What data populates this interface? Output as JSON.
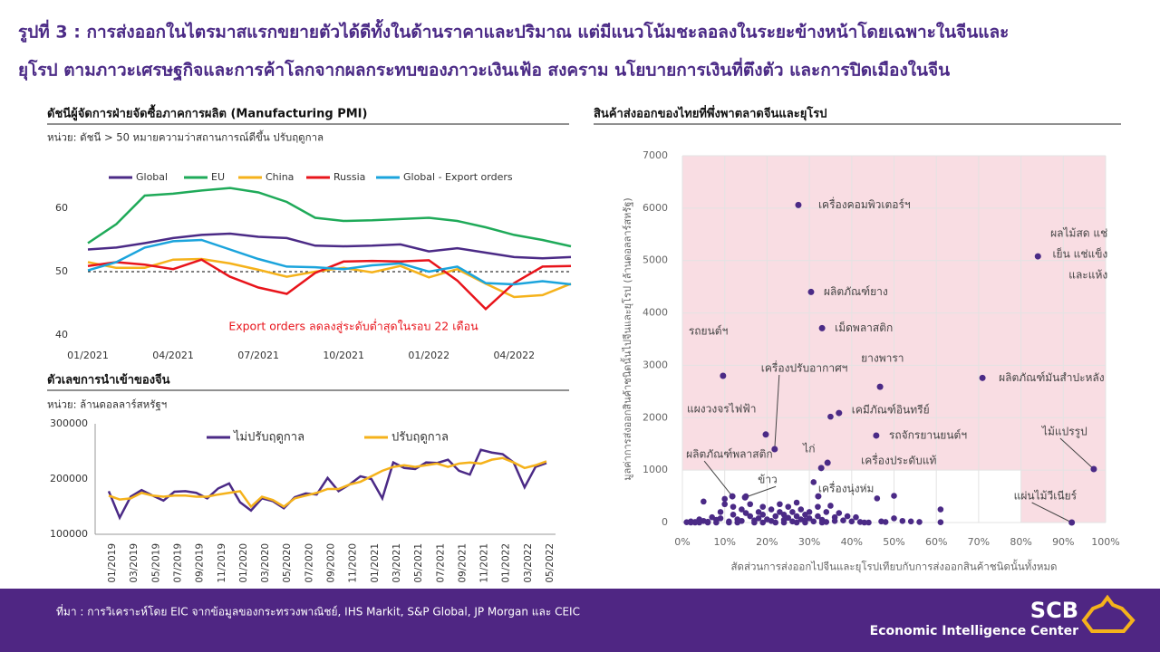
{
  "title": [
    "รูปที่ 3 : การส่งออกในไตรมาสแรกขยายตัวได้ดีทั้งในด้านราคาและปริมาณ แต่มีแนวโน้มชะลอลงในระยะข้างหน้าโดยเฉพาะในจีนและ",
    "ยุโรป ตามภาวะเศรษฐกิจและการค้าโลกจากผลกระทบของภาวะเงินเฟ้อ สงคราม นโยบายการเงินที่ตึงตัว และการปิดเมืองในจีน"
  ],
  "footer": {
    "source": "ที่มา : การวิเคราะห์โดย EIC จากข้อมูลของกระทรวงพาณิชย์, IHS Markit, S&P Global, JP Morgan และ CEIC",
    "logo": "SCB",
    "center": "Economic Intelligence Center"
  },
  "chart_data": [
    {
      "type": "line",
      "title": "ดัชนีผู้จัดการฝ่ายจัดซื้อภาคการผลิต (Manufacturing PMI)",
      "subtitle": "หน่วย: ดัชนี > 50 หมายความว่าสถานการณ์ดีขึ้น ปรับฤดูกาล",
      "categories": [
        "01/2021",
        null,
        null,
        "04/2021",
        null,
        null,
        "07/2021",
        null,
        null,
        "10/2021",
        null,
        null,
        "01/2022",
        null,
        null,
        "04/2022",
        null,
        null
      ],
      "series": [
        {
          "name": "Global",
          "color": "#4b2a86",
          "values": [
            53.5,
            53.8,
            54.5,
            55.3,
            55.8,
            56,
            55.5,
            55.3,
            54.1,
            54,
            54.1,
            54.3,
            53.2,
            53.7,
            53,
            52.3,
            52.1,
            52.3
          ]
        },
        {
          "name": "EU",
          "color": "#1faa59",
          "values": [
            54.5,
            57.5,
            62,
            62.3,
            62.8,
            63.2,
            62.5,
            61,
            58.5,
            58,
            58.1,
            58.3,
            58.5,
            58,
            57,
            55.8,
            55,
            54
          ]
        },
        {
          "name": "China",
          "color": "#f5b21b",
          "values": [
            51.5,
            50.6,
            50.6,
            51.9,
            52,
            51.3,
            50.3,
            49.2,
            50,
            50.6,
            49.9,
            50.9,
            49.1,
            50.4,
            48.1,
            46,
            46.3,
            48.1
          ]
        },
        {
          "name": "Russia",
          "color": "#e8141b",
          "values": [
            50.9,
            51.5,
            51.1,
            50.4,
            51.9,
            49.2,
            47.5,
            46.5,
            49.8,
            51.6,
            51.7,
            51.6,
            51.8,
            48.6,
            44.1,
            48.2,
            50.8,
            50.9
          ]
        },
        {
          "name": "Global - Export orders",
          "color": "#1ba4dc",
          "values": [
            50.2,
            51.5,
            53.8,
            54.8,
            55,
            53.5,
            52,
            50.8,
            50.7,
            50.4,
            51,
            51.3,
            50,
            50.8,
            48.2,
            48,
            48.5,
            48
          ]
        }
      ],
      "ylim": [
        40,
        65
      ],
      "yticks": [
        40,
        50,
        60
      ],
      "reference_line": 50,
      "annotation": "Export orders ลดลงสู่ระดับต่ำสุดในรอบ 22 เดือน",
      "annotation_color": "#e8141b",
      "legend": "top"
    },
    {
      "type": "line",
      "title": "ตัวเลขการนำเข้าของจีน",
      "subtitle": "หน่วย: ล้านดอลลาร์สหรัฐฯ",
      "categories": [
        "01/2019",
        null,
        "03/2019",
        null,
        "05/2019",
        null,
        "07/2019",
        null,
        "09/2019",
        null,
        "11/2019",
        null,
        "01/2020",
        null,
        "03/2020",
        null,
        "05/2020",
        null,
        "07/2020",
        null,
        "09/2020",
        null,
        "11/2020",
        null,
        "01/2021",
        null,
        "03/2021",
        null,
        "05/2021",
        null,
        "07/2021",
        null,
        "09/2021",
        null,
        "11/2021",
        null,
        "01/2022",
        null,
        "03/2022",
        null,
        "05/2022"
      ],
      "series": [
        {
          "name": "ไม่ปรับฤดูกาล",
          "color": "#4b2a86",
          "values": [
            178000,
            130000,
            168000,
            180000,
            170000,
            161000,
            177000,
            178000,
            175000,
            165000,
            183000,
            192000,
            158000,
            143000,
            165000,
            160000,
            147000,
            167000,
            174000,
            172000,
            202000,
            178000,
            190000,
            205000,
            200000,
            165000,
            230000,
            220000,
            218000,
            230000,
            229000,
            235000,
            215000,
            208000,
            253000,
            248000,
            245000,
            230000,
            185000,
            222000,
            229000
          ]
        },
        {
          "name": "ปรับฤดูกาล",
          "color": "#f5b21b",
          "values": [
            170000,
            163000,
            165000,
            175000,
            170000,
            168000,
            170000,
            170000,
            168000,
            168000,
            172000,
            175000,
            178000,
            150000,
            168000,
            162000,
            150000,
            165000,
            170000,
            175000,
            182000,
            182000,
            190000,
            195000,
            205000,
            215000,
            222000,
            225000,
            222000,
            225000,
            228000,
            222000,
            228000,
            230000,
            228000,
            235000,
            238000,
            230000,
            220000,
            225000,
            232000
          ]
        }
      ],
      "ylim": [
        100000,
        300000
      ],
      "yticks": [
        100000,
        200000,
        300000
      ],
      "legend": "top"
    },
    {
      "type": "scatter",
      "title": "สินค้าส่งออกของไทยที่พึ่งพาตลาดจีนและยุโรป",
      "x_label": "สัดส่วนการส่งออกไปจีนและยุโรปเทียบกับการส่งออกสินค้าชนิดนั้นทั้งหมด",
      "y_label": "มูลค่าการส่งออกสินค้าชนิดนั้นไปจีนและยุโรป (ล้านดอลลาร์สหรัฐ)",
      "color": "#4b2a86",
      "grid": true,
      "xlim": [
        0,
        100
      ],
      "xticks": [
        {
          "value": 0,
          "label": "0%"
        },
        {
          "value": 10,
          "label": "10%"
        },
        {
          "value": 20,
          "label": "20%"
        },
        {
          "value": 30,
          "label": "30%"
        },
        {
          "value": 40,
          "label": "40%"
        },
        {
          "value": 50,
          "label": "50%"
        },
        {
          "value": 60,
          "label": "60%"
        },
        {
          "value": 70,
          "label": "70%"
        },
        {
          "value": 80,
          "label": "80%"
        },
        {
          "value": 90,
          "label": "90%"
        },
        {
          "value": 100,
          "label": "100%"
        }
      ],
      "ylim": [
        0,
        7000
      ],
      "yticks": [
        0,
        1000,
        2000,
        3000,
        4000,
        5000,
        6000,
        7000
      ],
      "shaded": [
        {
          "xlim": [
            0,
            100
          ],
          "ylim": [
            1000,
            7000
          ],
          "color": "#f9dde3"
        },
        {
          "xlim": [
            80,
            100
          ],
          "ylim": [
            0,
            1000
          ],
          "color": "#f9dde3"
        }
      ],
      "labeled_points": [
        {
          "label": [
            "เครื่องคอมพิวเตอร์ฯ"
          ],
          "x": 27.4,
          "y": 6060
        },
        {
          "label": [
            "ผลไม้สด แช่",
            "เย็น แช่แข็ง",
            "และแห้ง"
          ],
          "x": 84,
          "y": 5080
        },
        {
          "label": [
            "ผลิตภัณฑ์ยาง"
          ],
          "x": 30.4,
          "y": 4400
        },
        {
          "label": [
            "เม็ดพลาสติก"
          ],
          "x": 33,
          "y": 3710
        },
        {
          "label": [
            "รถยนต์ฯ"
          ],
          "x": 9.6,
          "y": 2800
        },
        {
          "label": [
            "เครื่องปรับอากาศฯ"
          ],
          "x": 21.8,
          "y": 1400
        },
        {
          "label": [
            "ยางพารา"
          ],
          "x": 46.7,
          "y": 2590
        },
        {
          "label": [
            "ผลิตภัณฑ์มันสำปะหลัง"
          ],
          "x": 70.9,
          "y": 2760
        },
        {
          "label": [
            "แผงวงจรไฟฟ้า"
          ],
          "x": 19.7,
          "y": 1680
        },
        {
          "label": [
            "เคมีภัณฑ์อินทรีย์"
          ],
          "x": 37,
          "y": 2090
        },
        {
          "label": [
            "รถจักรยานยนต์ฯ"
          ],
          "x": 45.8,
          "y": 1660
        },
        {
          "label": [
            "ไม้แปรรูป"
          ],
          "x": 97.2,
          "y": 1020
        },
        {
          "label": [
            "ผลิตภัณฑ์พลาสติก"
          ],
          "x": 11.8,
          "y": 500
        },
        {
          "label": [
            "ไก่"
          ],
          "x": 32.8,
          "y": 1040
        },
        {
          "label": [
            "เครื่องประดับแท้"
          ],
          "x": 34.3,
          "y": 1140
        },
        {
          "label": [
            "ข้าว"
          ],
          "x": 14.8,
          "y": 480
        },
        {
          "label": [
            "เครื่องนุ่งห่ม"
          ],
          "x": 32.1,
          "y": 500
        },
        {
          "label": [
            "แผ่นไม้วีเนียร์"
          ],
          "x": 92,
          "y": 0
        }
      ],
      "x": [
        1,
        2,
        3,
        4,
        5,
        5,
        6,
        7,
        8,
        9,
        9,
        10,
        10,
        11,
        12,
        12,
        13,
        14,
        14,
        15,
        15,
        16,
        16,
        17,
        18,
        18,
        19,
        19,
        20,
        21,
        21,
        22,
        23,
        23,
        24,
        24,
        25,
        25,
        26,
        26,
        27,
        27,
        28,
        28,
        29,
        29,
        30,
        30,
        31,
        31,
        32,
        32,
        33,
        34,
        34,
        35,
        36,
        36,
        37,
        38,
        39,
        40,
        41,
        42,
        43,
        44,
        46,
        47,
        48,
        50,
        50,
        52,
        54,
        56,
        61,
        61,
        35,
        2,
        3,
        4,
        6,
        8,
        11,
        13,
        17,
        19,
        22,
        24,
        27,
        29,
        33
      ],
      "values": [
        5,
        20,
        10,
        60,
        30,
        400,
        15,
        100,
        50,
        200,
        80,
        350,
        450,
        20,
        150,
        300,
        60,
        250,
        30,
        500,
        180,
        120,
        350,
        40,
        200,
        80,
        300,
        150,
        60,
        250,
        30,
        120,
        350,
        200,
        50,
        150,
        300,
        90,
        20,
        200,
        380,
        120,
        60,
        250,
        40,
        150,
        200,
        80,
        770,
        20,
        300,
        120,
        50,
        200,
        10,
        320,
        100,
        30,
        180,
        40,
        120,
        20,
        100,
        10,
        0,
        0,
        460,
        20,
        10,
        510,
        80,
        30,
        20,
        10,
        250,
        5,
        2020,
        0,
        0,
        0,
        0,
        0,
        0,
        0,
        0,
        0,
        0,
        0,
        0,
        0,
        0
      ]
    }
  ]
}
